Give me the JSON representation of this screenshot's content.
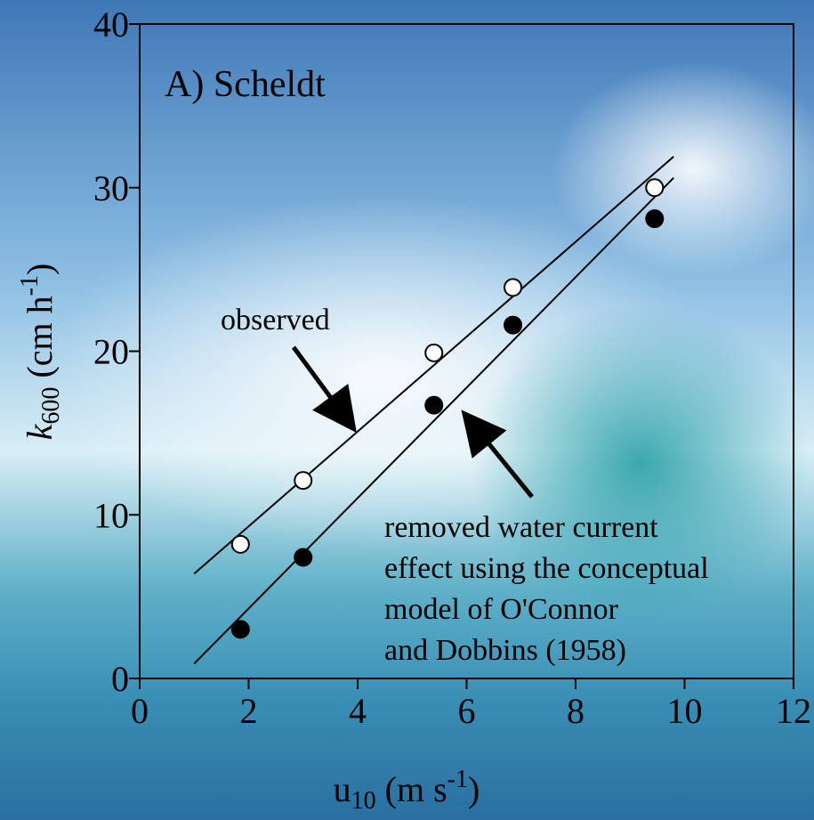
{
  "chart_data": {
    "type": "scatter",
    "title": "A) Scheldt",
    "xlabel": [
      "u",
      "10",
      " (m s",
      "-1",
      ")"
    ],
    "ylabel": [
      "k",
      "600",
      " (cm h",
      "-1",
      ")"
    ],
    "xlim": [
      0,
      12
    ],
    "xticks": [
      0,
      2,
      4,
      6,
      8,
      10,
      12
    ],
    "ylim": [
      0,
      40
    ],
    "yticks": [
      0,
      10,
      20,
      30,
      40
    ],
    "series": [
      {
        "marker": "open",
        "color": "#000000",
        "x": [
          1.85,
          3.0,
          5.4,
          6.85,
          9.45
        ],
        "values": [
          8.2,
          12.1,
          19.9,
          23.9,
          30.0
        ],
        "fit": {
          "x": [
            1.0,
            9.8
          ],
          "y": [
            6.4,
            31.9
          ]
        }
      },
      {
        "marker": "filled",
        "color": "#000000",
        "x": [
          1.85,
          3.0,
          5.4,
          6.85,
          9.45
        ],
        "values": [
          3.0,
          7.4,
          16.7,
          21.6,
          28.1
        ],
        "fit": {
          "x": [
            1.0,
            9.8
          ],
          "y": [
            0.9,
            30.6
          ]
        }
      }
    ],
    "annotations": [
      [
        "observed"
      ],
      [
        "removed water current",
        "effect using the conceptual",
        "model of O'Connor",
        "and Dobbins (1958)"
      ]
    ]
  }
}
